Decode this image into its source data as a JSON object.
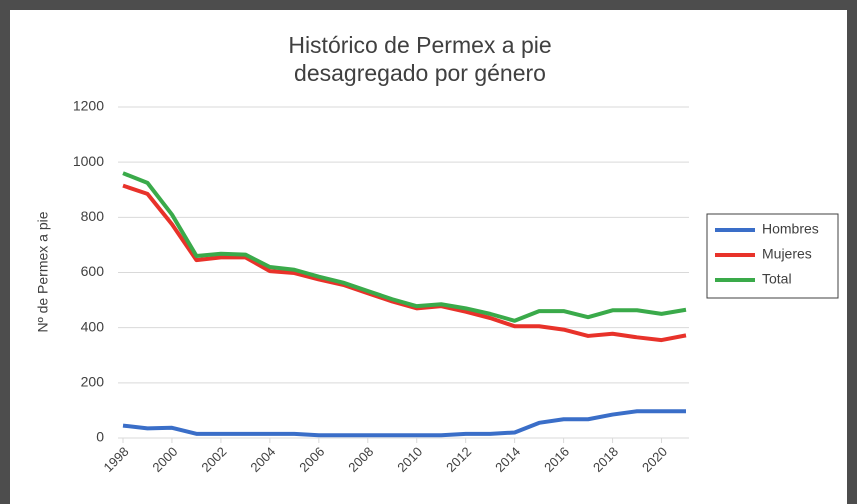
{
  "chart_data": {
    "type": "line",
    "title": [
      "Histórico de Permex a pie",
      "desagregado por género"
    ],
    "ylabel": "Nº de Permex a pie",
    "x": [
      1998,
      1999,
      2000,
      2001,
      2002,
      2003,
      2004,
      2005,
      2006,
      2007,
      2008,
      2009,
      2010,
      2011,
      2012,
      2013,
      2014,
      2015,
      2016,
      2017,
      2018,
      2019,
      2020,
      2021
    ],
    "xlim": [
      1998,
      2021
    ],
    "xticks": [
      1998,
      2000,
      2002,
      2004,
      2006,
      2008,
      2010,
      2012,
      2014,
      2016,
      2018,
      2020
    ],
    "ylim": [
      0,
      1200
    ],
    "yticks": [
      0,
      200,
      400,
      600,
      800,
      1000,
      1200
    ],
    "grid": true,
    "legend": "right",
    "series": [
      {
        "name": "Hombres",
        "color": "#3a6ec8",
        "values": [
          45,
          35,
          37,
          15,
          15,
          15,
          15,
          15,
          10,
          10,
          10,
          10,
          10,
          10,
          15,
          15,
          20,
          55,
          68,
          68,
          85,
          97,
          97,
          97
        ]
      },
      {
        "name": "Mujeres",
        "color": "#e8322a",
        "values": [
          915,
          885,
          775,
          645,
          655,
          655,
          605,
          598,
          575,
          555,
          525,
          495,
          470,
          478,
          458,
          435,
          405,
          405,
          393,
          370,
          378,
          365,
          355,
          372
        ]
      },
      {
        "name": "Total",
        "color": "#3aaa4a",
        "values": [
          960,
          925,
          810,
          660,
          668,
          665,
          620,
          610,
          585,
          563,
          533,
          503,
          478,
          485,
          470,
          450,
          425,
          460,
          460,
          438,
          463,
          463,
          450,
          465
        ]
      }
    ]
  }
}
